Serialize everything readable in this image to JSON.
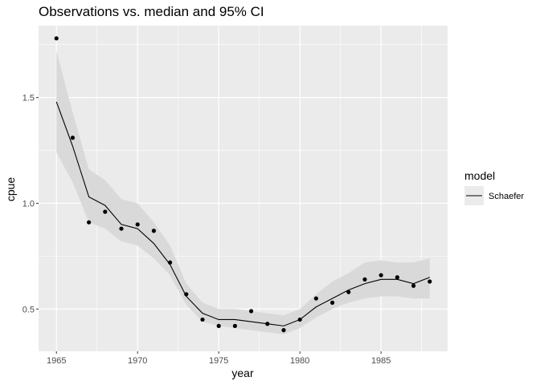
{
  "chart_data": {
    "type": "line",
    "title": "Observations vs. median and 95% CI",
    "xlabel": "year",
    "ylabel": "cpue",
    "xlim": [
      1963.9,
      1989.1
    ],
    "ylim": [
      0.3,
      1.84
    ],
    "x_ticks": [
      1965,
      1970,
      1975,
      1980,
      1985
    ],
    "x_tick_labels": [
      "1965",
      "1970",
      "1975",
      "1980",
      "1985"
    ],
    "y_ticks": [
      0.5,
      1.0,
      1.5
    ],
    "y_tick_labels": [
      "0.5",
      "1.0",
      "1.5"
    ],
    "grid": true,
    "legend": {
      "title": "model",
      "position": "right",
      "entries": [
        "Schaefer"
      ]
    },
    "colors": {
      "panel": "#ebebeb",
      "grid": "#ffffff",
      "ribbon": "#d9d9d9",
      "line": "#000000",
      "points": "#000000"
    },
    "x": [
      1965,
      1966,
      1967,
      1968,
      1969,
      1970,
      1971,
      1972,
      1973,
      1974,
      1975,
      1976,
      1977,
      1978,
      1979,
      1980,
      1981,
      1982,
      1983,
      1984,
      1985,
      1986,
      1987,
      1988
    ],
    "series": [
      {
        "name": "Schaefer",
        "kind": "median",
        "values": [
          1.48,
          1.27,
          1.03,
          0.99,
          0.9,
          0.88,
          0.81,
          0.71,
          0.56,
          0.48,
          0.45,
          0.45,
          0.44,
          0.43,
          0.42,
          0.45,
          0.51,
          0.55,
          0.59,
          0.62,
          0.64,
          0.64,
          0.62,
          0.65
        ],
        "lower": [
          1.24,
          1.1,
          0.91,
          0.88,
          0.82,
          0.8,
          0.74,
          0.66,
          0.52,
          0.44,
          0.42,
          0.41,
          0.4,
          0.39,
          0.38,
          0.41,
          0.46,
          0.5,
          0.53,
          0.55,
          0.56,
          0.56,
          0.55,
          0.55
        ],
        "upper": [
          1.72,
          1.43,
          1.16,
          1.11,
          1.02,
          1.0,
          0.91,
          0.8,
          0.62,
          0.53,
          0.5,
          0.5,
          0.49,
          0.48,
          0.47,
          0.5,
          0.57,
          0.63,
          0.67,
          0.72,
          0.73,
          0.72,
          0.72,
          0.74
        ]
      },
      {
        "kind": "observations",
        "values": [
          1.78,
          1.31,
          0.91,
          0.96,
          0.88,
          0.9,
          0.87,
          0.72,
          0.57,
          0.45,
          0.42,
          0.42,
          0.49,
          0.43,
          0.4,
          0.45,
          0.55,
          0.53,
          0.58,
          0.64,
          0.66,
          0.65,
          0.61,
          0.63
        ]
      }
    ]
  }
}
